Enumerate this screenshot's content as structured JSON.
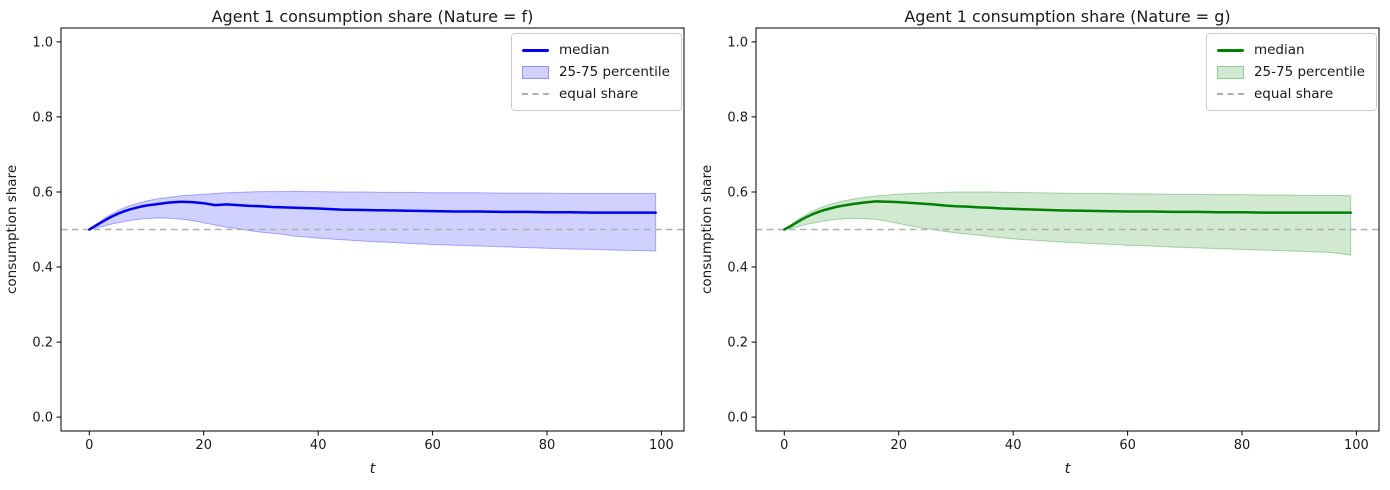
{
  "figure": {
    "background": "#ffffff",
    "text_color": "#1a1a1a"
  },
  "chart_data": [
    {
      "type": "line",
      "title": "Agent 1 consumption share (Nature = f)",
      "xlabel": "t",
      "ylabel": "consumption share",
      "xlim": [
        -4.95,
        103.95
      ],
      "ylim": [
        -0.037,
        1.037
      ],
      "xticks": [
        0,
        20,
        40,
        60,
        80,
        100
      ],
      "yticks": [
        0.0,
        0.2,
        0.4,
        0.6,
        0.8,
        1.0
      ],
      "grid": false,
      "legend": [
        "median",
        "25-75 percentile",
        "equal share"
      ],
      "legend_position": "upper right",
      "colors": {
        "median": "#0000ee",
        "band_fill": "rgba(0,0,255,0.18)",
        "band_edge": "rgba(0,0,255,0.30)",
        "equal_share": "#b0b0b0"
      },
      "series": [
        {
          "name": "median",
          "style": "line",
          "x": [
            0,
            1,
            2,
            3,
            4,
            5,
            6,
            7,
            8,
            9,
            10,
            12,
            14,
            16,
            18,
            20,
            22,
            24,
            26,
            28,
            30,
            32,
            34,
            36,
            38,
            40,
            44,
            48,
            52,
            56,
            60,
            64,
            68,
            72,
            76,
            80,
            84,
            88,
            92,
            96,
            99
          ],
          "values": [
            0.5,
            0.509,
            0.518,
            0.527,
            0.535,
            0.542,
            0.548,
            0.553,
            0.557,
            0.561,
            0.564,
            0.568,
            0.572,
            0.574,
            0.573,
            0.57,
            0.565,
            0.567,
            0.565,
            0.563,
            0.562,
            0.56,
            0.559,
            0.558,
            0.557,
            0.556,
            0.553,
            0.552,
            0.551,
            0.55,
            0.549,
            0.548,
            0.548,
            0.547,
            0.547,
            0.546,
            0.546,
            0.545,
            0.545,
            0.545,
            0.545
          ]
        },
        {
          "name": "25-75 percentile",
          "style": "band",
          "x": [
            0,
            1,
            2,
            3,
            4,
            5,
            6,
            7,
            8,
            9,
            10,
            12,
            14,
            16,
            18,
            20,
            22,
            24,
            26,
            28,
            30,
            32,
            34,
            36,
            38,
            40,
            44,
            48,
            52,
            56,
            60,
            64,
            68,
            72,
            76,
            80,
            84,
            88,
            92,
            96,
            99
          ],
          "upper": [
            0.5,
            0.512,
            0.523,
            0.533,
            0.542,
            0.55,
            0.557,
            0.563,
            0.568,
            0.572,
            0.576,
            0.582,
            0.586,
            0.59,
            0.592,
            0.594,
            0.596,
            0.598,
            0.599,
            0.6,
            0.601,
            0.601,
            0.601,
            0.602,
            0.601,
            0.601,
            0.6,
            0.6,
            0.599,
            0.599,
            0.598,
            0.598,
            0.598,
            0.597,
            0.597,
            0.597,
            0.596,
            0.596,
            0.596,
            0.596,
            0.596
          ],
          "lower": [
            0.5,
            0.503,
            0.507,
            0.511,
            0.515,
            0.518,
            0.521,
            0.524,
            0.526,
            0.528,
            0.529,
            0.531,
            0.53,
            0.528,
            0.524,
            0.518,
            0.512,
            0.506,
            0.502,
            0.497,
            0.493,
            0.49,
            0.487,
            0.482,
            0.48,
            0.477,
            0.473,
            0.469,
            0.466,
            0.463,
            0.46,
            0.458,
            0.456,
            0.454,
            0.452,
            0.45,
            0.448,
            0.447,
            0.445,
            0.444,
            0.443
          ]
        },
        {
          "name": "equal share",
          "style": "hline",
          "value": 0.5
        }
      ]
    },
    {
      "type": "line",
      "title": "Agent 1 consumption share (Nature = g)",
      "xlabel": "t",
      "ylabel": "consumption share",
      "xlim": [
        -4.95,
        103.95
      ],
      "ylim": [
        -0.037,
        1.037
      ],
      "xticks": [
        0,
        20,
        40,
        60,
        80,
        100
      ],
      "yticks": [
        0.0,
        0.2,
        0.4,
        0.6,
        0.8,
        1.0
      ],
      "grid": false,
      "legend": [
        "median",
        "25-75 percentile",
        "equal share"
      ],
      "legend_position": "upper right",
      "colors": {
        "median": "#008000",
        "band_fill": "rgba(0,128,0,0.18)",
        "band_edge": "rgba(0,128,0,0.30)",
        "equal_share": "#b0b0b0"
      },
      "series": [
        {
          "name": "median",
          "style": "line",
          "x": [
            0,
            1,
            2,
            3,
            4,
            5,
            6,
            7,
            8,
            9,
            10,
            12,
            14,
            16,
            18,
            20,
            22,
            24,
            26,
            28,
            30,
            32,
            34,
            36,
            38,
            40,
            44,
            48,
            52,
            56,
            60,
            64,
            68,
            72,
            76,
            80,
            84,
            88,
            92,
            96,
            99
          ],
          "values": [
            0.5,
            0.508,
            0.517,
            0.526,
            0.534,
            0.541,
            0.547,
            0.552,
            0.556,
            0.56,
            0.563,
            0.568,
            0.572,
            0.575,
            0.574,
            0.573,
            0.571,
            0.569,
            0.567,
            0.564,
            0.562,
            0.561,
            0.559,
            0.558,
            0.556,
            0.555,
            0.553,
            0.551,
            0.55,
            0.549,
            0.548,
            0.548,
            0.547,
            0.547,
            0.546,
            0.546,
            0.545,
            0.545,
            0.545,
            0.545,
            0.545
          ]
        },
        {
          "name": "25-75 percentile",
          "style": "band",
          "x": [
            0,
            1,
            2,
            3,
            4,
            5,
            6,
            7,
            8,
            9,
            10,
            12,
            14,
            16,
            18,
            20,
            22,
            24,
            26,
            28,
            30,
            32,
            34,
            36,
            38,
            40,
            44,
            48,
            52,
            56,
            60,
            64,
            68,
            72,
            76,
            80,
            84,
            88,
            92,
            96,
            99
          ],
          "upper": [
            0.5,
            0.511,
            0.522,
            0.532,
            0.541,
            0.549,
            0.556,
            0.562,
            0.567,
            0.571,
            0.575,
            0.581,
            0.586,
            0.589,
            0.592,
            0.594,
            0.596,
            0.597,
            0.598,
            0.599,
            0.6,
            0.6,
            0.6,
            0.6,
            0.599,
            0.599,
            0.598,
            0.597,
            0.596,
            0.596,
            0.595,
            0.595,
            0.594,
            0.594,
            0.593,
            0.593,
            0.592,
            0.592,
            0.591,
            0.591,
            0.59
          ],
          "lower": [
            0.5,
            0.503,
            0.506,
            0.51,
            0.514,
            0.517,
            0.52,
            0.523,
            0.525,
            0.527,
            0.528,
            0.53,
            0.529,
            0.527,
            0.522,
            0.516,
            0.51,
            0.504,
            0.5,
            0.495,
            0.491,
            0.488,
            0.485,
            0.481,
            0.478,
            0.475,
            0.471,
            0.467,
            0.464,
            0.461,
            0.458,
            0.456,
            0.453,
            0.451,
            0.449,
            0.447,
            0.445,
            0.443,
            0.441,
            0.438,
            0.432
          ]
        },
        {
          "name": "equal share",
          "style": "hline",
          "value": 0.5
        }
      ]
    }
  ]
}
